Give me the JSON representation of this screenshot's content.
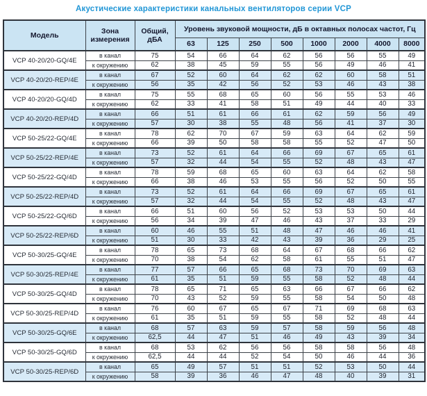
{
  "title": "Акустические характеристики канальных вентиляторов  серии VCP",
  "table": {
    "headers": {
      "model": "Модель",
      "zone": "Зона измерения",
      "total": "Общий, дБА",
      "octave": "Уровень звуковой мощности, дБ в октавных полосах частот, Гц",
      "frequencies": [
        "63",
        "125",
        "250",
        "500",
        "1000",
        "2000",
        "4000",
        "8000"
      ]
    },
    "zone_labels": {
      "duct": "в канал",
      "ambient": "к окружению"
    },
    "rows": [
      {
        "model": "VCP 40-20/20-GQ/4E",
        "shaded": false,
        "duct": {
          "total": "75",
          "bands": [
            "54",
            "66",
            "64",
            "62",
            "56",
            "56",
            "55",
            "49"
          ]
        },
        "ambient": {
          "total": "62",
          "bands": [
            "38",
            "45",
            "59",
            "55",
            "56",
            "49",
            "46",
            "41"
          ]
        }
      },
      {
        "model": "VCP 40-20/20-REP/4E",
        "shaded": true,
        "duct": {
          "total": "67",
          "bands": [
            "52",
            "60",
            "64",
            "62",
            "62",
            "60",
            "58",
            "51"
          ]
        },
        "ambient": {
          "total": "56",
          "bands": [
            "35",
            "42",
            "56",
            "52",
            "53",
            "46",
            "43",
            "38"
          ]
        }
      },
      {
        "model": "VCP 40-20/20-GQ/4D",
        "shaded": false,
        "duct": {
          "total": "75",
          "bands": [
            "55",
            "68",
            "65",
            "60",
            "56",
            "55",
            "53",
            "46"
          ]
        },
        "ambient": {
          "total": "62",
          "bands": [
            "33",
            "41",
            "58",
            "51",
            "49",
            "44",
            "40",
            "33"
          ]
        }
      },
      {
        "model": "VCP 40-20/20-REP/4D",
        "shaded": true,
        "duct": {
          "total": "66",
          "bands": [
            "51",
            "61",
            "66",
            "61",
            "62",
            "59",
            "56",
            "49"
          ]
        },
        "ambient": {
          "total": "57",
          "bands": [
            "30",
            "38",
            "55",
            "48",
            "56",
            "41",
            "37",
            "30"
          ]
        }
      },
      {
        "model": "VCP 50-25/22-GQ/4E",
        "shaded": false,
        "duct": {
          "total": "78",
          "bands": [
            "62",
            "70",
            "67",
            "59",
            "63",
            "64",
            "62",
            "59"
          ]
        },
        "ambient": {
          "total": "66",
          "bands": [
            "39",
            "50",
            "58",
            "58",
            "55",
            "52",
            "47",
            "50"
          ]
        }
      },
      {
        "model": "VCP 50-25/22-REP/4E",
        "shaded": true,
        "duct": {
          "total": "73",
          "bands": [
            "52",
            "61",
            "64",
            "66",
            "69",
            "67",
            "65",
            "61"
          ]
        },
        "ambient": {
          "total": "57",
          "bands": [
            "32",
            "44",
            "54",
            "55",
            "52",
            "48",
            "43",
            "47"
          ]
        }
      },
      {
        "model": "VCP 50-25/22-GQ/4D",
        "shaded": false,
        "duct": {
          "total": "78",
          "bands": [
            "59",
            "68",
            "65",
            "60",
            "63",
            "64",
            "62",
            "58"
          ]
        },
        "ambient": {
          "total": "66",
          "bands": [
            "38",
            "46",
            "53",
            "55",
            "56",
            "52",
            "50",
            "55"
          ]
        }
      },
      {
        "model": "VCP 50-25/22-REP/4D",
        "shaded": true,
        "duct": {
          "total": "73",
          "bands": [
            "52",
            "61",
            "64",
            "66",
            "69",
            "67",
            "65",
            "61"
          ]
        },
        "ambient": {
          "total": "57",
          "bands": [
            "32",
            "44",
            "54",
            "55",
            "52",
            "48",
            "43",
            "47"
          ]
        }
      },
      {
        "model": "VCP 50-25/22-GQ/6D",
        "shaded": false,
        "duct": {
          "total": "66",
          "bands": [
            "51",
            "60",
            "56",
            "52",
            "53",
            "53",
            "50",
            "44"
          ]
        },
        "ambient": {
          "total": "56",
          "bands": [
            "34",
            "39",
            "47",
            "46",
            "43",
            "37",
            "33",
            "29"
          ]
        }
      },
      {
        "model": "VCP 50-25/22-REP/6D",
        "shaded": true,
        "duct": {
          "total": "60",
          "bands": [
            "46",
            "55",
            "51",
            "48",
            "47",
            "46",
            "46",
            "41"
          ]
        },
        "ambient": {
          "total": "51",
          "bands": [
            "30",
            "33",
            "42",
            "43",
            "39",
            "36",
            "29",
            "25"
          ]
        }
      },
      {
        "model": "VCP 50-30/25-GQ/4E",
        "shaded": false,
        "duct": {
          "total": "78",
          "bands": [
            "65",
            "73",
            "68",
            "64",
            "67",
            "68",
            "66",
            "62"
          ]
        },
        "ambient": {
          "total": "70",
          "bands": [
            "38",
            "54",
            "62",
            "58",
            "61",
            "55",
            "51",
            "47"
          ]
        }
      },
      {
        "model": "VCP 50-30/25-REP/4E",
        "shaded": true,
        "duct": {
          "total": "77",
          "bands": [
            "57",
            "66",
            "65",
            "68",
            "73",
            "70",
            "69",
            "63"
          ]
        },
        "ambient": {
          "total": "61",
          "bands": [
            "35",
            "51",
            "59",
            "55",
            "58",
            "52",
            "48",
            "44"
          ]
        }
      },
      {
        "model": "VCP 50-30/25-GQ/4D",
        "shaded": false,
        "duct": {
          "total": "78",
          "bands": [
            "65",
            "71",
            "65",
            "63",
            "66",
            "67",
            "66",
            "62"
          ]
        },
        "ambient": {
          "total": "70",
          "bands": [
            "43",
            "52",
            "59",
            "55",
            "58",
            "54",
            "50",
            "48"
          ]
        }
      },
      {
        "model": "VCP 50-30/25-REP/4D",
        "shaded": false,
        "duct": {
          "total": "76",
          "bands": [
            "60",
            "67",
            "65",
            "67",
            "71",
            "69",
            "68",
            "63"
          ]
        },
        "ambient": {
          "total": "61",
          "bands": [
            "35",
            "51",
            "59",
            "55",
            "58",
            "52",
            "48",
            "44"
          ]
        }
      },
      {
        "model": "VCP 50-30/25-GQ/6E",
        "shaded": true,
        "duct": {
          "total": "68",
          "bands": [
            "57",
            "63",
            "59",
            "57",
            "58",
            "59",
            "56",
            "48"
          ]
        },
        "ambient": {
          "total": "62,5",
          "bands": [
            "44",
            "47",
            "51",
            "46",
            "49",
            "43",
            "39",
            "34"
          ]
        }
      },
      {
        "model": "VCP 50-30/25-GQ/6D",
        "shaded": false,
        "duct": {
          "total": "68",
          "bands": [
            "53",
            "62",
            "56",
            "56",
            "58",
            "58",
            "56",
            "48"
          ]
        },
        "ambient": {
          "total": "62,5",
          "bands": [
            "44",
            "44",
            "52",
            "54",
            "50",
            "46",
            "44",
            "36"
          ]
        }
      },
      {
        "model": "VCP 50-30/25-REP/6D",
        "shaded": true,
        "duct": {
          "total": "65",
          "bands": [
            "49",
            "57",
            "51",
            "51",
            "52",
            "53",
            "50",
            "44"
          ]
        },
        "ambient": {
          "total": "58",
          "bands": [
            "39",
            "36",
            "46",
            "47",
            "48",
            "40",
            "39",
            "31"
          ]
        }
      }
    ]
  },
  "colors": {
    "title": "#2196d6",
    "header_bg": "#cbe4f3",
    "shaded_row_bg": "#d7eaf7",
    "border": "#3c4148"
  }
}
